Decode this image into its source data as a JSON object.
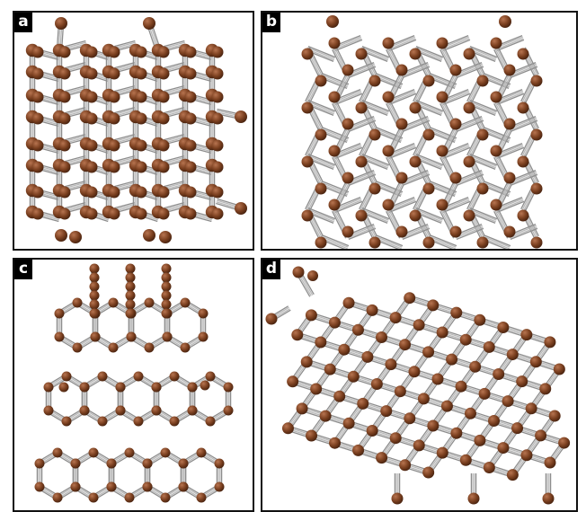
{
  "panels": [
    {
      "id": "a",
      "label": "a"
    },
    {
      "id": "b",
      "label": "b"
    },
    {
      "id": "c",
      "label": "c"
    },
    {
      "id": "d",
      "label": "d"
    }
  ],
  "colors": {
    "atom": "#7a3f1f",
    "atom_highlight": "#b77450",
    "bond": "#b9b9b9",
    "bond_edge": "#8e8e8e",
    "frame": "#111111"
  }
}
